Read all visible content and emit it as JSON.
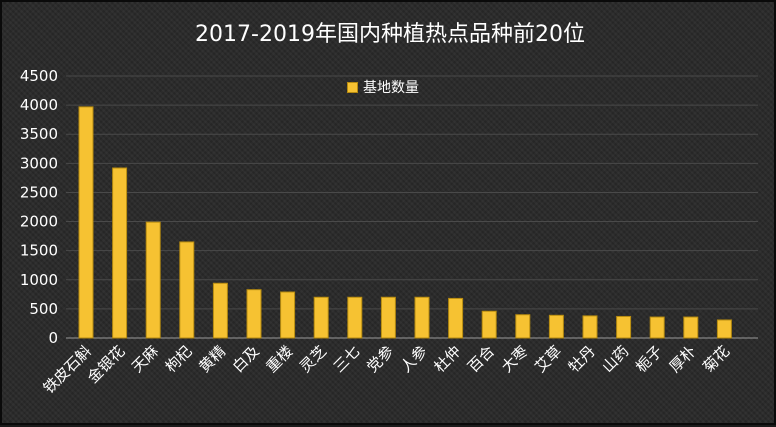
{
  "chart_data": {
    "type": "bar",
    "title": "2017-2019年国内种植热点品种前20位",
    "xlabel": "",
    "ylabel": "",
    "ylim": [
      0,
      4500
    ],
    "yticks": [
      0,
      500,
      1000,
      1500,
      2000,
      2500,
      3000,
      3500,
      4000,
      4500
    ],
    "grid": true,
    "legend_position": "top-center",
    "categories": [
      "铁皮石斛",
      "金银花",
      "天麻",
      "枸杞",
      "黄精",
      "白及",
      "重楼",
      "灵芝",
      "三七",
      "党参",
      "人参",
      "杜仲",
      "百合",
      "大枣",
      "艾草",
      "牡丹",
      "山药",
      "栀子",
      "厚朴",
      "菊花"
    ],
    "series": [
      {
        "name": "基地数量",
        "color": "#f6c232",
        "values": [
          3970,
          2920,
          1990,
          1650,
          940,
          830,
          790,
          700,
          700,
          700,
          700,
          680,
          460,
          400,
          390,
          380,
          370,
          360,
          360,
          310
        ]
      }
    ]
  }
}
